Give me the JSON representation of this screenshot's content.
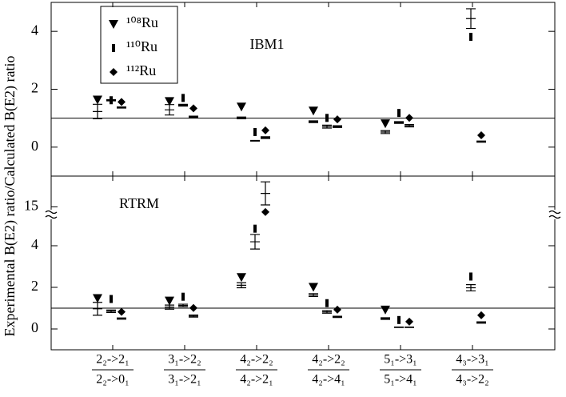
{
  "chart_data": [
    {
      "type": "scatter",
      "panel_label": "IBM1",
      "ylim": [
        -1,
        5
      ],
      "yticks": [
        0,
        2,
        4
      ],
      "reference_line": 1,
      "series": [
        {
          "name": "¹⁰⁸Ru",
          "marker": "triangle",
          "color": "#000000",
          "values": [
            1.64,
            1.59,
            1.4,
            1.26,
            0.82,
            null
          ],
          "error_bar_values": [
            1.23,
            1.29,
            1.01,
            0.88,
            0.52,
            null
          ],
          "errors": [
            0.25,
            0.18,
            0.03,
            0.03,
            0.05,
            null
          ]
        },
        {
          "name": "¹¹⁰Ru",
          "marker": "bar",
          "color": "#000000",
          "values": [
            1.62,
            1.7,
            0.52,
            1.01,
            1.18,
            3.81
          ],
          "error_bar_values": [
            1.62,
            1.45,
            0.22,
            0.71,
            0.85,
            4.44
          ],
          "errors": [
            0.02,
            0.03,
            0.01,
            0.05,
            0.03,
            0.34
          ]
        },
        {
          "name": "¹¹²Ru",
          "marker": "diamond",
          "color": "#000000",
          "values": [
            1.56,
            1.34,
            0.58,
            0.96,
            1.01,
            0.41
          ],
          "error_bar_values": [
            1.37,
            1.04,
            0.33,
            0.71,
            0.74,
            0.19
          ],
          "errors": [
            0.02,
            0.03,
            0.03,
            0.03,
            0.04,
            0.02
          ]
        }
      ]
    },
    {
      "type": "scatter",
      "panel_label": "RTRM",
      "ylabel": "Experimental B(E2) ratio/Calculated B(E2) ratio",
      "ylim": [
        -1,
        5.5
      ],
      "yticks": [
        0,
        2,
        4
      ],
      "break_ylim": [
        14.6,
        16.6
      ],
      "break_yticks": [
        15
      ],
      "reference_line": 1,
      "categories": [
        "2₂->2₁",
        "3₁->2₂",
        "4₂->2₂",
        "4₂->2₂",
        "5₁->3₁",
        "4₃->3₁"
      ],
      "category_denominators": [
        "2₂->0₁",
        "3₁->2₁",
        "4₂->2₁",
        "4₂->4₁",
        "5₁->4₁",
        "4₃->2₂"
      ],
      "series": [
        {
          "marker": "triangle",
          "color": "#000000",
          "values": [
            1.48,
            1.36,
            2.49,
            2.02,
            0.93,
            null
          ],
          "error_bar_values": [
            0.97,
            1.05,
            2.1,
            1.63,
            0.5,
            null
          ],
          "errors": [
            0.31,
            0.1,
            0.12,
            0.07,
            0.04,
            null
          ]
        },
        {
          "marker": "bar",
          "color": "#000000",
          "values": [
            1.44,
            1.55,
            4.82,
            1.24,
            0.43,
            2.52
          ],
          "error_bar_values": [
            0.85,
            1.13,
            4.19,
            0.82,
            0.08,
            1.98
          ],
          "errors": [
            0.06,
            0.06,
            0.35,
            0.06,
            0.01,
            0.15
          ]
        },
        {
          "marker": "diamond",
          "color": "#000000",
          "values": [
            0.82,
            1.01,
            14.73,
            0.93,
            0.35,
            0.66
          ],
          "error_bar_values": [
            0.5,
            0.62,
            15.7,
            0.58,
            0.08,
            0.31
          ],
          "errors": [
            0.03,
            0.05,
            0.6,
            0.03,
            0.01,
            0.03
          ]
        }
      ]
    }
  ]
}
